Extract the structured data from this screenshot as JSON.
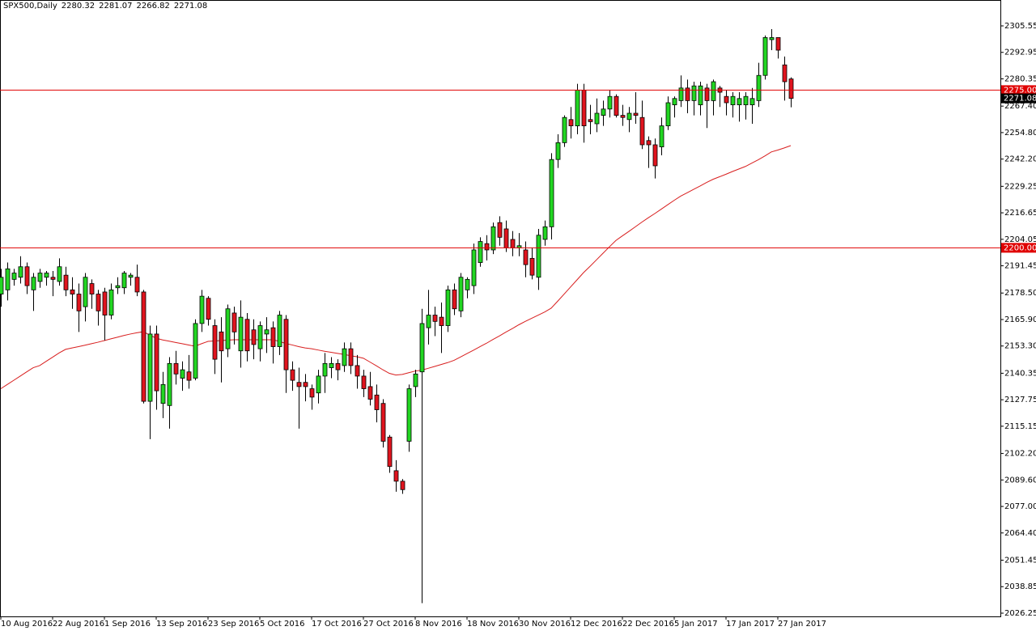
{
  "chart_data": {
    "type": "candlestick",
    "title": "SPX500,Daily",
    "categories": [
      "10 Aug 2016",
      null,
      null,
      null,
      null,
      null,
      null,
      null,
      "22 Aug 2016",
      null,
      null,
      null,
      null,
      null,
      null,
      null,
      "1 Sep 2016",
      null,
      null,
      null,
      null,
      null,
      null,
      null,
      "13 Sep 2016",
      null,
      null,
      null,
      null,
      null,
      null,
      null,
      "23 Sep 2016",
      null,
      null,
      null,
      null,
      null,
      null,
      null,
      "5 Oct 2016",
      null,
      null,
      null,
      null,
      null,
      null,
      null,
      "17 Oct 2016",
      null,
      null,
      null,
      null,
      null,
      null,
      null,
      "27 Oct 2016",
      null,
      null,
      null,
      null,
      null,
      null,
      null,
      "8 Nov 2016",
      null,
      null,
      null,
      null,
      null,
      null,
      null,
      "18 Nov 2016",
      null,
      null,
      null,
      null,
      null,
      null,
      null,
      "30 Nov 2016",
      null,
      null,
      null,
      null,
      null,
      null,
      null,
      "12 Dec 2016",
      null,
      null,
      null,
      null,
      null,
      null,
      null,
      "22 Dec 2016",
      null,
      null,
      null,
      null,
      null,
      null,
      null,
      "5 Jan 2017",
      null,
      null,
      null,
      null,
      null,
      null,
      null,
      "17 Jan 2017",
      null,
      null,
      null,
      null,
      null,
      null,
      null,
      "27 Jan 2017",
      null,
      null
    ],
    "open": [
      2178,
      2180,
      2185,
      2186,
      2191,
      2180,
      2184,
      2186,
      2186,
      2184,
      2187,
      2180,
      2178,
      2172,
      2183,
      2178,
      2179,
      2168,
      2181,
      2181,
      2186,
      2186,
      2179,
      2127,
      2159,
      2126,
      2125,
      2145,
      2138,
      2141,
      2138,
      2164,
      2176,
      2163,
      2160,
      2152,
      2169,
      2151,
      2166,
      2161,
      2152,
      2159,
      2162,
      2153,
      2166,
      2142,
      2136,
      2136,
      2133,
      2131,
      2139,
      2143,
      2145,
      2144,
      2152,
      2144,
      2139,
      2134,
      2130,
      2126,
      2110,
      2094,
      2089,
      2108,
      2134,
      2141,
      2162,
      2168,
      2167,
      2163,
      2180,
      2170,
      2180,
      2182,
      2193,
      2202,
      2199,
      2212,
      2209,
      2204,
      2200,
      2199,
      2195,
      2186,
      2204,
      2210,
      2242,
      2250,
      2261,
      2258,
      2275,
      2261,
      2259,
      2263,
      2266,
      2272,
      2263,
      2261,
      2264,
      2262,
      2251,
      2249,
      2248,
      2258,
      2268,
      2270,
      2276,
      2270,
      2268,
      2276,
      2270,
      2276,
      2272,
      2268,
      2268,
      2268,
      2268,
      2270,
      2282,
      2299,
      2300,
      2287,
      2280.32
    ],
    "high": [
      2190,
      2193,
      2190,
      2196,
      2193,
      2188,
      2190,
      2189,
      2189,
      2195,
      2191,
      2186,
      2183,
      2188,
      2185,
      2180,
      2181,
      2183,
      2186,
      2189,
      2188,
      2192,
      2180,
      2163,
      2163,
      2141,
      2148,
      2151,
      2146,
      2149,
      2166,
      2180,
      2177,
      2166,
      2167,
      2173,
      2172,
      2175,
      2169,
      2166,
      2165,
      2167,
      2165,
      2170,
      2168,
      2146,
      2143,
      2140,
      2135,
      2142,
      2150,
      2148,
      2147,
      2155,
      2155,
      2149,
      2142,
      2141,
      2135,
      2128,
      2111,
      2099,
      2090,
      2135,
      2142,
      2171,
      2180,
      2172,
      2174,
      2182,
      2183,
      2188,
      2186,
      2202,
      2205,
      2206,
      2212,
      2215,
      2213,
      2208,
      2207,
      2203,
      2200,
      2209,
      2213,
      2245,
      2254,
      2263,
      2267,
      2278,
      2278,
      2268,
      2271,
      2270,
      2275,
      2273,
      2268,
      2267,
      2274,
      2270,
      2253,
      2252,
      2262,
      2272,
      2272,
      2282,
      2280,
      2279,
      2279,
      2278,
      2280,
      2277,
      2275,
      2274,
      2274,
      2274,
      2276,
      2288,
      2301,
      2304,
      2300,
      2291,
      2281.07
    ],
    "low": [
      2172,
      2175,
      2182,
      2183,
      2178,
      2170,
      2181,
      2182,
      2177,
      2182,
      2177,
      2171,
      2160,
      2165,
      2171,
      2163,
      2156,
      2166,
      2178,
      2178,
      2182,
      2177,
      2126,
      2109,
      2123,
      2119,
      2114,
      2135,
      2132,
      2133,
      2137,
      2160,
      2163,
      2140,
      2136,
      2148,
      2154,
      2143,
      2146,
      2147,
      2146,
      2150,
      2145,
      2149,
      2131,
      2132,
      2114,
      2127,
      2123,
      2126,
      2131,
      2138,
      2137,
      2141,
      2140,
      2133,
      2129,
      2125,
      2117,
      2105,
      2093,
      2084,
      2083,
      2103,
      2129,
      2031,
      2154,
      2158,
      2150,
      2160,
      2168,
      2167,
      2176,
      2178,
      2191,
      2194,
      2197,
      2201,
      2198,
      2196,
      2196,
      2186,
      2185,
      2180,
      2201,
      2204,
      2238,
      2248,
      2252,
      2254,
      2250,
      2254,
      2255,
      2258,
      2262,
      2262,
      2258,
      2255,
      2259,
      2247,
      2238,
      2233,
      2244,
      2256,
      2262,
      2267,
      2264,
      2263,
      2263,
      2257,
      2263,
      2267,
      2263,
      2262,
      2260,
      2261,
      2259,
      2267,
      2280,
      2294,
      2290,
      2270,
      2266.82
    ],
    "close": [
      2186,
      2190,
      2188,
      2191,
      2182,
      2186,
      2188,
      2188,
      2185,
      2191,
      2180,
      2178,
      2170,
      2186,
      2178,
      2170,
      2168,
      2180,
      2182,
      2188,
      2187,
      2179,
      2127,
      2159,
      2132,
      2135,
      2145,
      2140,
      2142,
      2137,
      2164,
      2177,
      2166,
      2147,
      2151,
      2171,
      2160,
      2167,
      2151,
      2154,
      2163,
      2161,
      2153,
      2168,
      2142,
      2137,
      2134,
      2134,
      2129,
      2139,
      2145,
      2145,
      2142,
      2152,
      2144,
      2139,
      2133,
      2128,
      2123,
      2108,
      2096,
      2089,
      2085,
      2133,
      2140,
      2164,
      2168,
      2165,
      2163,
      2180,
      2171,
      2186,
      2185,
      2199,
      2203,
      2199,
      2210,
      2205,
      2200,
      2200,
      2201,
      2192,
      2187,
      2206,
      2210,
      2242,
      2250,
      2262,
      2258,
      2275,
      2258,
      2260,
      2264,
      2266,
      2272,
      2263,
      2262,
      2264,
      2263,
      2249,
      2249,
      2239,
      2258,
      2269,
      2271,
      2276,
      2270,
      2277,
      2277,
      2270,
      2279,
      2274,
      2269,
      2272,
      2271,
      2272,
      2271,
      2282,
      2300,
      2300,
      2294,
      2279,
      2271.08
    ],
    "up_color": "#22d622",
    "down_color": "#e0141e",
    "ma": {
      "color": "#d81e1e",
      "values": [
        2133,
        2135,
        2137,
        2139,
        2141,
        2143,
        2144,
        2146,
        2148,
        2150,
        2151.7,
        2152.4,
        2153,
        2153.7,
        2154.4,
        2155.1,
        2155.9,
        2156.7,
        2157.5,
        2158.3,
        2159,
        2159.6,
        2160.1,
        2158.5,
        2157,
        2156.2,
        2155.6,
        2155,
        2154.4,
        2153.8,
        2153.2,
        2154.4,
        2155.5,
        2155.7,
        2155.9,
        2156.1,
        2156.3,
        2156.3,
        2156.3,
        2156.3,
        2156.3,
        2156.3,
        2156.3,
        2155.5,
        2154.5,
        2153.8,
        2153,
        2152.4,
        2152,
        2151.4,
        2150.8,
        2150.3,
        2149.8,
        2149.3,
        2148.7,
        2148.2,
        2147.5,
        2145.7,
        2143.9,
        2142,
        2140.3,
        2139.5,
        2139.8,
        2140.6,
        2141.4,
        2141.8,
        2142.7,
        2143.6,
        2144.5,
        2145.4,
        2146.5,
        2148.1,
        2149.7,
        2151.3,
        2153,
        2154.6,
        2156.4,
        2158.1,
        2159.9,
        2161.6,
        2163.4,
        2165,
        2166.5,
        2168,
        2169.5,
        2171.3,
        2174.6,
        2178,
        2181.4,
        2184.8,
        2188.2,
        2191.2,
        2194.3,
        2197.4,
        2200.5,
        2203.5,
        2205.7,
        2207.8,
        2210,
        2212.2,
        2214.3,
        2216.3,
        2218.4,
        2220.5,
        2222.6,
        2224.6,
        2226.2,
        2227.8,
        2229.4,
        2231.1,
        2232.6,
        2233.8,
        2235,
        2236.3,
        2237.5,
        2238.7,
        2240.3,
        2241.9,
        2243.7,
        2245.6,
        2246.5,
        2247.5,
        2248.6
      ]
    },
    "hlines": [
      {
        "value": 2275,
        "label": "2275.00",
        "color": "#e00000"
      },
      {
        "value": 2200,
        "label": "2200.00",
        "color": "#e00000"
      }
    ],
    "ylim": [
      2024.71,
      2317.86
    ],
    "yticks": [
      2305.55,
      2292.95,
      2280.35,
      {
        "value": 2267.4,
        "label": "2267.40"
      },
      {
        "value": 2254.8,
        "label": "2254.80"
      },
      {
        "value": 2242.2,
        "label": "2242.20"
      },
      2229.25,
      2216.65,
      2204.05,
      2191.45,
      {
        "value": 2178.5,
        "label": "2178.50"
      },
      {
        "value": 2165.9,
        "label": "2165.90"
      },
      {
        "value": 2153.3,
        "label": "2153.30"
      },
      2140.35,
      2127.75,
      2115.15,
      {
        "value": 2102.2,
        "label": "2102.20"
      },
      {
        "value": 2089.6,
        "label": "2089.60"
      },
      {
        "value": 2077,
        "label": "2077.00"
      },
      {
        "value": 2064.4,
        "label": "2064.40"
      },
      2051.45,
      2038.85,
      2026.25
    ]
  }
}
